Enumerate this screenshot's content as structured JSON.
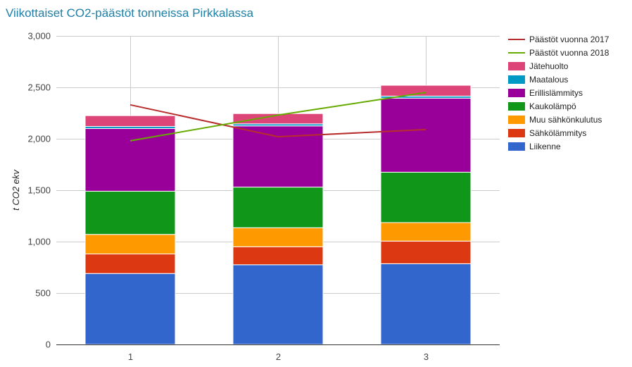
{
  "chart_data": {
    "type": "bar",
    "title": "Viikottaiset CO2-päästöt tonneissa Pirkkalassa",
    "xlabel": "",
    "ylabel": "t CO2 ekv",
    "ylim": [
      0,
      3000
    ],
    "yticks": [
      0,
      500,
      1000,
      1500,
      2000,
      2500,
      3000
    ],
    "ytick_labels": [
      "0",
      "500",
      "1,000",
      "1,500",
      "2,000",
      "2,500",
      "3,000"
    ],
    "categories": [
      "1",
      "2",
      "3"
    ],
    "stacked": true,
    "grid": true,
    "legend_position": "right",
    "series": [
      {
        "name": "Liikenne",
        "color": "#3366cc",
        "values": [
          690,
          775,
          785
        ]
      },
      {
        "name": "Sähkölämmitys",
        "color": "#dc3912",
        "values": [
          190,
          175,
          220
        ]
      },
      {
        "name": "Muu sähkönkulutus",
        "color": "#ff9900",
        "values": [
          190,
          185,
          180
        ]
      },
      {
        "name": "Kaukolämpö",
        "color": "#109618",
        "values": [
          420,
          395,
          490
        ]
      },
      {
        "name": "Erillislämmitys",
        "color": "#990099",
        "values": [
          610,
          595,
          720
        ]
      },
      {
        "name": "Maatalous",
        "color": "#0099c6",
        "values": [
          20,
          20,
          20
        ]
      },
      {
        "name": "Jätehuolto",
        "color": "#dd4477",
        "values": [
          105,
          100,
          105
        ]
      }
    ],
    "lines": [
      {
        "name": "Päästöt vuonna 2017",
        "color": "#b82e2e",
        "values": [
          2330,
          2020,
          2090
        ]
      },
      {
        "name": "Päästöt vuonna 2018",
        "color": "#66aa00",
        "values": [
          1980,
          2230,
          2450
        ]
      }
    ],
    "legend_order": [
      "Päästöt vuonna 2017",
      "Päästöt vuonna 2018",
      "Jätehuolto",
      "Maatalous",
      "Erillislämmitys",
      "Kaukolämpö",
      "Muu sähkönkulutus",
      "Sähkölämmitys",
      "Liikenne"
    ]
  }
}
